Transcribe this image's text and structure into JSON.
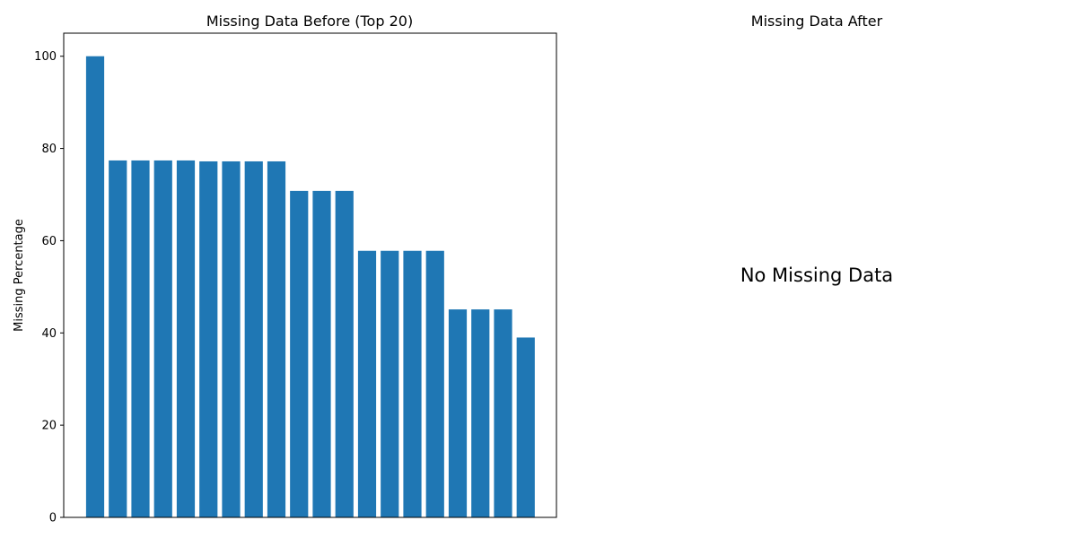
{
  "chart_data": [
    {
      "type": "bar",
      "title": "Missing Data Before (Top 20)",
      "xlabel": "",
      "ylabel": "Missing Percentage",
      "values": [
        100,
        77.4,
        77.4,
        77.4,
        77.4,
        77.2,
        77.2,
        77.2,
        77.2,
        70.8,
        70.8,
        70.8,
        57.8,
        57.8,
        57.8,
        57.8,
        45.1,
        45.1,
        45.1,
        39.0
      ],
      "ylim": [
        0,
        105
      ],
      "yticks": [
        0,
        20,
        40,
        60,
        80,
        100
      ],
      "bar_color": "#1f77b4",
      "grid": false
    },
    {
      "type": "text",
      "title": "Missing Data After",
      "note": "No Missing Data"
    }
  ]
}
